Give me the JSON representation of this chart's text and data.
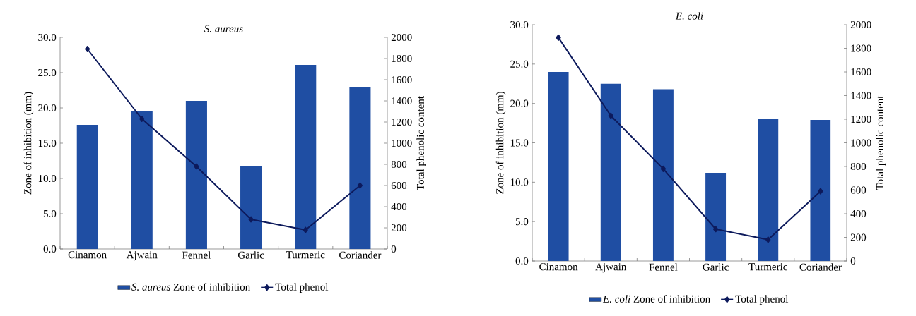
{
  "chart_data": [
    {
      "type": "bar",
      "title": "S. aureus",
      "ylabel": "Zone of inhibition (mm)",
      "y2label": "Total phenolic content",
      "categories": [
        "Cinamon",
        "Ajwain",
        "Fennel",
        "Garlic",
        "Turmeric",
        "Coriander"
      ],
      "series": [
        {
          "name": "*S. aureus* Zone of inhibition",
          "color": "#1f4ea3",
          "values": [
            17.6,
            19.6,
            21.0,
            11.8,
            26.1,
            23.0
          ]
        },
        {
          "name": "Total phenol",
          "type": "line",
          "axis": "y2",
          "color": "#0d1a5c",
          "marker": "diamond",
          "line_style": "solid",
          "values": [
            1890,
            1230,
            780,
            280,
            180,
            600
          ]
        }
      ],
      "ylim": [
        0,
        30
      ],
      "yticks": [
        {
          "value": 0,
          "label": "0.0"
        },
        {
          "value": 5,
          "label": "5.0"
        },
        {
          "value": 10,
          "label": "10.0"
        },
        {
          "value": 15,
          "label": "15.0"
        },
        {
          "value": 20,
          "label": "20.0"
        },
        {
          "value": 25,
          "label": "25.0"
        },
        {
          "value": 30,
          "label": "30.0"
        }
      ],
      "y2lim": [
        0,
        2000
      ],
      "y2ticks": [
        0,
        200,
        400,
        600,
        800,
        1000,
        1200,
        1400,
        1600,
        1800,
        2000
      ],
      "legend": "bottom"
    },
    {
      "type": "bar",
      "title": "E. coli",
      "ylabel": "Zone of inhibition (mm)",
      "y2label": "Total phenolic content",
      "categories": [
        "Cinamon",
        "Ajwain",
        "Fennel",
        "Garlic",
        "Turmeric",
        "Coriander"
      ],
      "series": [
        {
          "name": "*E. coli* Zone of inhibition",
          "color": "#1f4ea3",
          "values": [
            24.0,
            22.5,
            21.8,
            11.2,
            18.0,
            17.9
          ]
        },
        {
          "name": "Total phenol",
          "type": "line",
          "axis": "y2",
          "color": "#0d1a5c",
          "marker": "diamond",
          "line_style": "solid",
          "values": [
            1890,
            1230,
            780,
            270,
            180,
            590
          ]
        }
      ],
      "ylim": [
        0,
        30
      ],
      "yticks": [
        {
          "value": 0,
          "label": "0.0"
        },
        {
          "value": 5,
          "label": "5.0"
        },
        {
          "value": 10,
          "label": "10.0"
        },
        {
          "value": 15,
          "label": "15.0"
        },
        {
          "value": 20,
          "label": "20.0"
        },
        {
          "value": 25,
          "label": "25.0"
        },
        {
          "value": 30,
          "label": "30.0"
        }
      ],
      "y2lim": [
        0,
        2000
      ],
      "y2ticks": [
        0,
        200,
        400,
        600,
        800,
        1000,
        1200,
        1400,
        1600,
        1800,
        2000
      ],
      "legend": "bottom"
    }
  ]
}
